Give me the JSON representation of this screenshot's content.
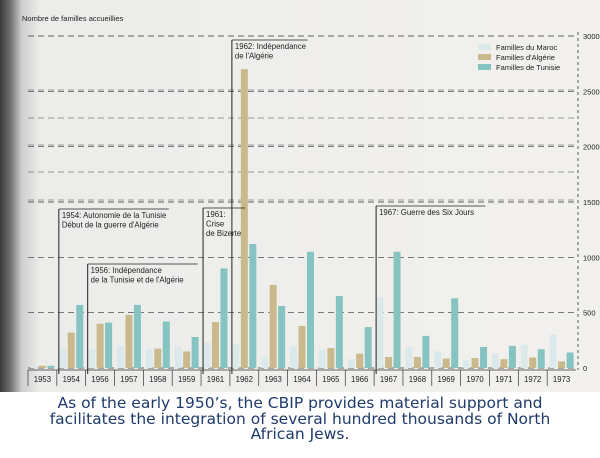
{
  "chart_data": {
    "type": "bar",
    "ylabel": "Nombre de familles accueillies",
    "categories": [
      "1953",
      "1954",
      "1956",
      "1957",
      "1958",
      "1959",
      "1961",
      "1962",
      "1963",
      "1964",
      "1965",
      "1966",
      "1967",
      "1968",
      "1969",
      "1970",
      "1971",
      "1972",
      "1973"
    ],
    "y_ticks": [
      "0",
      "500",
      "1000",
      "1500",
      "2000",
      "2500",
      "3000"
    ],
    "ylim": [
      0,
      3000
    ],
    "series": [
      {
        "name": "Familles du Maroc",
        "color": "#dce9ea",
        "values": [
          10,
          190,
          165,
          200,
          170,
          195,
          230,
          215,
          100,
          195,
          165,
          80,
          640,
          190,
          150,
          70,
          130,
          210,
          300
        ]
      },
      {
        "name": "Familles d'Algérie",
        "color": "#c9b98d",
        "values": [
          20,
          320,
          400,
          480,
          175,
          150,
          415,
          2700,
          750,
          380,
          180,
          130,
          100,
          100,
          85,
          90,
          80,
          95,
          60
        ]
      },
      {
        "name": "Familles de Tunisie",
        "color": "#86c4c2",
        "values": [
          20,
          570,
          410,
          570,
          420,
          280,
          900,
          1120,
          560,
          1050,
          650,
          370,
          1050,
          290,
          630,
          190,
          200,
          170,
          140
        ]
      }
    ],
    "annotations": [
      {
        "lines": [
          "1954: Autonomie de la Tunisie",
          "Début de la guerre d'Algérie"
        ],
        "at": "1954"
      },
      {
        "lines": [
          "1956: Indépendance",
          "de la Tunisie et de l'Algérie"
        ],
        "at": "1956"
      },
      {
        "lines": [
          "1961:",
          "Crise",
          "de Bizerte"
        ],
        "at": "1961"
      },
      {
        "lines": [
          "1962: Indépendance",
          "de l'Algérie"
        ],
        "at": "1962"
      },
      {
        "lines": [
          "1967: Guerre des Six Jours"
        ],
        "at": "1967"
      }
    ],
    "legend_position": "top-right",
    "grid": true
  },
  "caption": "As of the early 1950’s, the CBIP provides material support and facilitates the integration of several hundred thousands of North African Jews."
}
